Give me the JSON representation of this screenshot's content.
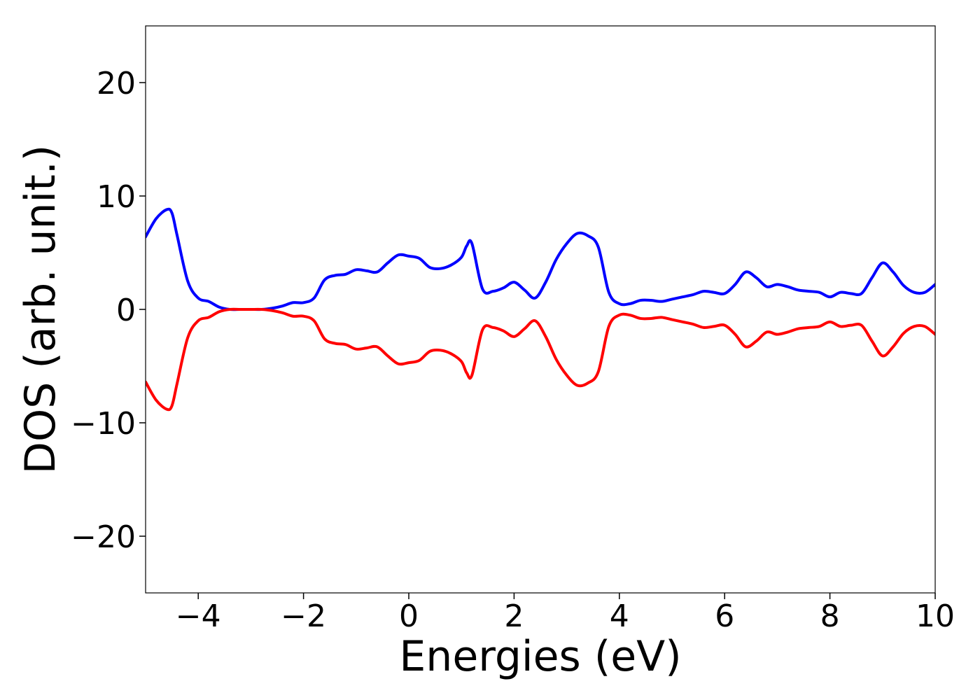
{
  "chart_data": {
    "type": "line",
    "title": "",
    "xlabel": "Energies (eV)",
    "ylabel": "DOS (arb. unit.)",
    "xlim": [
      -5,
      10
    ],
    "ylim": [
      -25,
      25
    ],
    "xticks": [
      -4,
      -2,
      0,
      2,
      4,
      6,
      8,
      10
    ],
    "xtick_labels": [
      "−4",
      "−2",
      "0",
      "2",
      "4",
      "6",
      "8",
      "10"
    ],
    "yticks": [
      -20,
      -10,
      0,
      10,
      20
    ],
    "ytick_labels": [
      "−20",
      "−10",
      "0",
      "10",
      "20"
    ],
    "grid": false,
    "legend": "none",
    "x": [
      -5.0,
      -4.8,
      -4.6,
      -4.5,
      -4.4,
      -4.2,
      -4.0,
      -3.8,
      -3.6,
      -3.4,
      -3.2,
      -3.0,
      -2.8,
      -2.6,
      -2.4,
      -2.2,
      -2.0,
      -1.8,
      -1.6,
      -1.4,
      -1.2,
      -1.0,
      -0.8,
      -0.6,
      -0.4,
      -0.2,
      0.0,
      0.2,
      0.4,
      0.6,
      0.8,
      1.0,
      1.1,
      1.2,
      1.4,
      1.6,
      1.8,
      2.0,
      2.2,
      2.4,
      2.6,
      2.8,
      3.0,
      3.2,
      3.4,
      3.6,
      3.8,
      4.0,
      4.2,
      4.4,
      4.6,
      4.8,
      5.0,
      5.2,
      5.4,
      5.6,
      5.8,
      6.0,
      6.2,
      6.4,
      6.6,
      6.8,
      7.0,
      7.2,
      7.4,
      7.6,
      7.8,
      8.0,
      8.2,
      8.4,
      8.6,
      8.8,
      9.0,
      9.2,
      9.4,
      9.6,
      9.8,
      10.0
    ],
    "series": [
      {
        "color": "#0000ff",
        "values": [
          6.4,
          8.0,
          8.8,
          8.5,
          6.5,
          2.5,
          1.0,
          0.7,
          0.2,
          0.0,
          0.0,
          0.0,
          0.0,
          0.1,
          0.3,
          0.6,
          0.6,
          1.0,
          2.6,
          3.0,
          3.1,
          3.5,
          3.4,
          3.3,
          4.1,
          4.8,
          4.7,
          4.5,
          3.7,
          3.6,
          3.9,
          4.6,
          5.6,
          5.8,
          1.8,
          1.6,
          1.9,
          2.4,
          1.7,
          1.0,
          2.4,
          4.4,
          5.8,
          6.7,
          6.5,
          5.5,
          1.5,
          0.5,
          0.5,
          0.8,
          0.8,
          0.7,
          0.9,
          1.1,
          1.3,
          1.6,
          1.5,
          1.4,
          2.2,
          3.3,
          2.8,
          2.0,
          2.2,
          2.0,
          1.7,
          1.6,
          1.5,
          1.1,
          1.5,
          1.4,
          1.4,
          2.8,
          4.1,
          3.3,
          2.1,
          1.5,
          1.5,
          2.2
        ]
      },
      {
        "color": "#ff0000",
        "values": [
          -6.4,
          -8.0,
          -8.8,
          -8.5,
          -6.5,
          -2.5,
          -1.0,
          -0.7,
          -0.2,
          0.0,
          0.0,
          0.0,
          0.0,
          -0.1,
          -0.3,
          -0.6,
          -0.6,
          -1.0,
          -2.6,
          -3.0,
          -3.1,
          -3.5,
          -3.4,
          -3.3,
          -4.1,
          -4.8,
          -4.7,
          -4.5,
          -3.7,
          -3.6,
          -3.9,
          -4.6,
          -5.6,
          -5.8,
          -1.8,
          -1.6,
          -1.9,
          -2.4,
          -1.7,
          -1.0,
          -2.4,
          -4.4,
          -5.8,
          -6.7,
          -6.5,
          -5.5,
          -1.5,
          -0.5,
          -0.5,
          -0.8,
          -0.8,
          -0.7,
          -0.9,
          -1.1,
          -1.3,
          -1.6,
          -1.5,
          -1.4,
          -2.2,
          -3.3,
          -2.8,
          -2.0,
          -2.2,
          -2.0,
          -1.7,
          -1.6,
          -1.5,
          -1.1,
          -1.5,
          -1.4,
          -1.4,
          -2.8,
          -4.1,
          -3.3,
          -2.1,
          -1.5,
          -1.5,
          -2.2
        ]
      }
    ]
  }
}
